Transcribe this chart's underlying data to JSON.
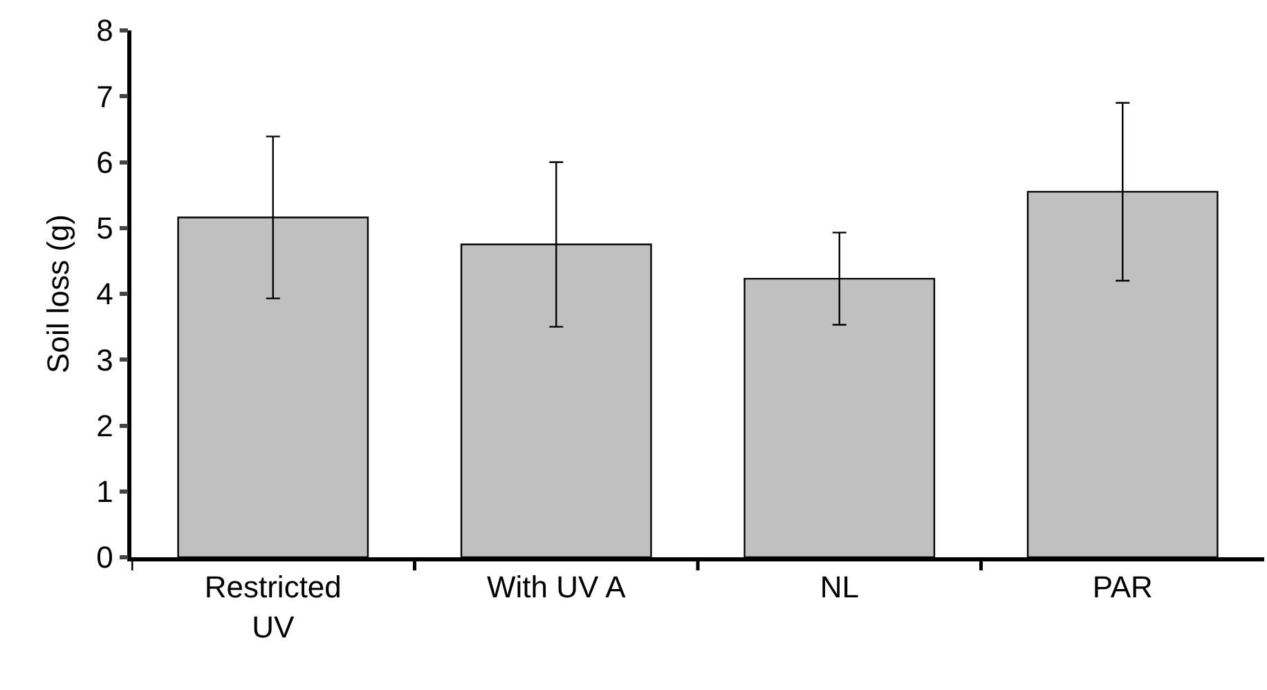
{
  "chart_data": {
    "type": "bar",
    "ylabel": "Soil loss (g)",
    "categories": [
      "Restricted UV",
      "With UV A",
      "NL",
      "PAR"
    ],
    "values": [
      5.16,
      4.75,
      4.23,
      5.55
    ],
    "errors": [
      1.23,
      1.25,
      0.7,
      1.35
    ],
    "color": "#c0c0c0",
    "ylim": [
      0,
      8
    ],
    "yticks": [
      0,
      1,
      2,
      3,
      4,
      5,
      6,
      7,
      8
    ],
    "legend": false
  }
}
